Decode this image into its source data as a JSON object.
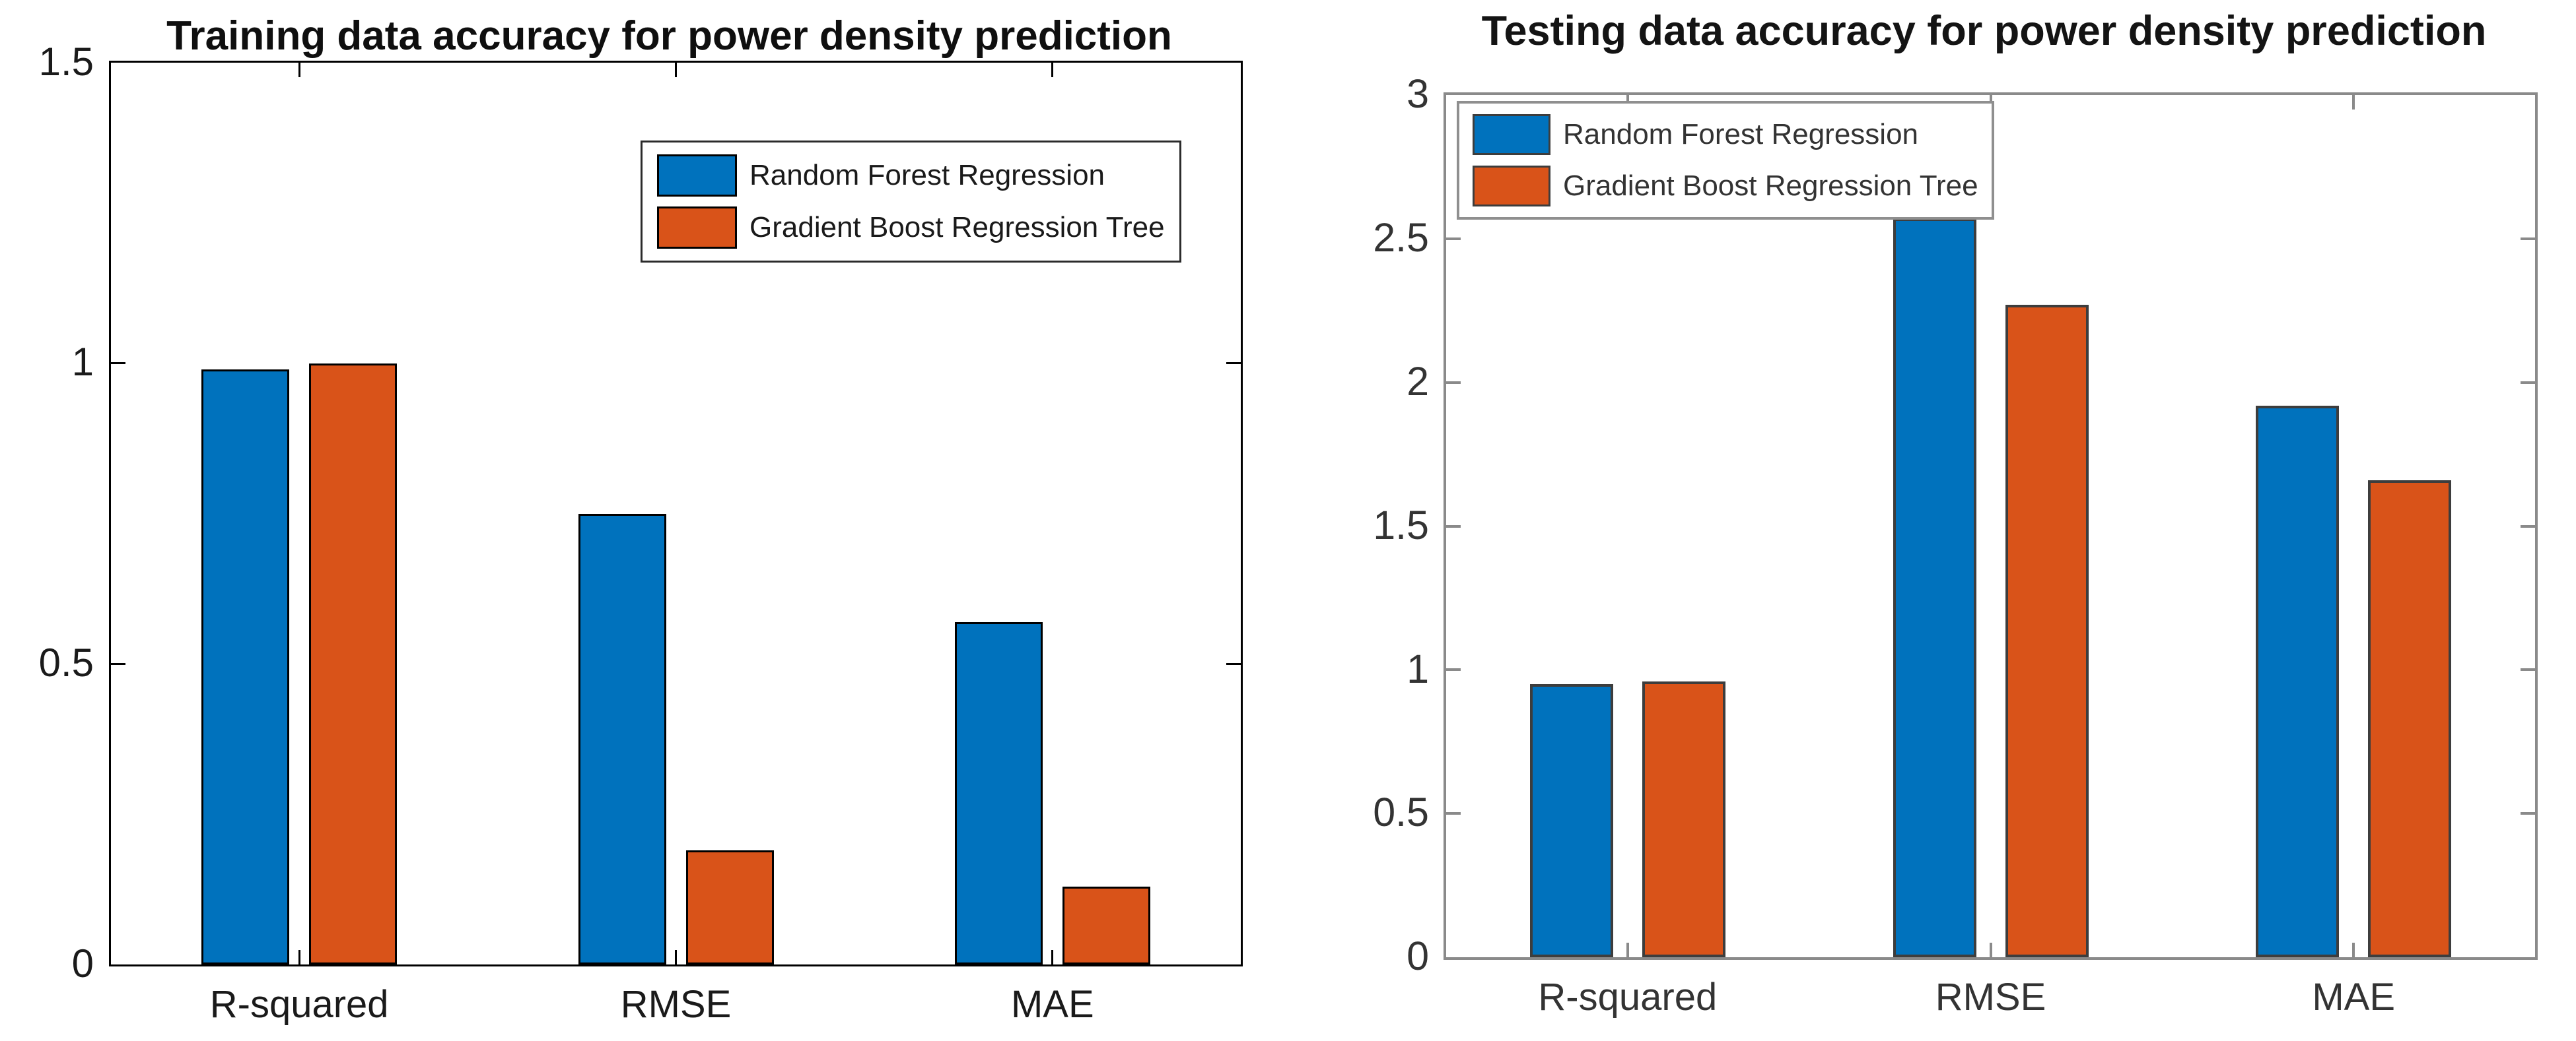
{
  "figure_background": "#ffffff",
  "series_colors": {
    "random_forest": "#0072BD",
    "gradient_boost": "#D95319"
  },
  "chart_data": [
    {
      "id": "training",
      "type": "bar",
      "title": "Training data accuracy for power density prediction",
      "categories": [
        "R-squared",
        "RMSE",
        "MAE"
      ],
      "series": [
        {
          "name": "Random Forest Regression",
          "color": "#0072BD",
          "values": [
            0.99,
            0.75,
            0.57
          ]
        },
        {
          "name": "Gradient Boost Regression Tree",
          "color": "#D95319",
          "values": [
            1.0,
            0.19,
            0.13
          ]
        }
      ],
      "xlabel": "",
      "ylabel": "",
      "ylim": [
        0,
        1.5
      ],
      "yticks": [
        0,
        0.5,
        1,
        1.5
      ],
      "ytick_labels": [
        "0",
        "0.5",
        "1",
        "1.5"
      ],
      "grid": false,
      "box": true,
      "tick_direction": "in",
      "legend_position": "inside-top-right",
      "axis_color": "#000000",
      "bar_edge_color": "#000000",
      "text_color": "#1a1a1a",
      "legend_border_color": "#2b2b2b"
    },
    {
      "id": "testing",
      "type": "bar",
      "title": "Testing data accuracy for power density prediction",
      "categories": [
        "R-squared",
        "RMSE",
        "MAE"
      ],
      "series": [
        {
          "name": "Random Forest Regression",
          "color": "#0072BD",
          "values": [
            0.95,
            2.57,
            1.92
          ]
        },
        {
          "name": "Gradient Boost Regression Tree",
          "color": "#D95319",
          "values": [
            0.96,
            2.27,
            1.66
          ]
        }
      ],
      "xlabel": "",
      "ylabel": "",
      "ylim": [
        0,
        3
      ],
      "yticks": [
        0,
        0.5,
        1,
        1.5,
        2,
        2.5,
        3
      ],
      "ytick_labels": [
        "0",
        "0.5",
        "1",
        "1.5",
        "2",
        "2.5",
        "3"
      ],
      "grid": false,
      "box": true,
      "tick_direction": "in",
      "legend_position": "inside-top-left",
      "axis_color": "#8a8a8a",
      "bar_edge_color": "#3d3d3d",
      "text_color": "#333333",
      "legend_border_color": "#8f8f8f"
    }
  ]
}
